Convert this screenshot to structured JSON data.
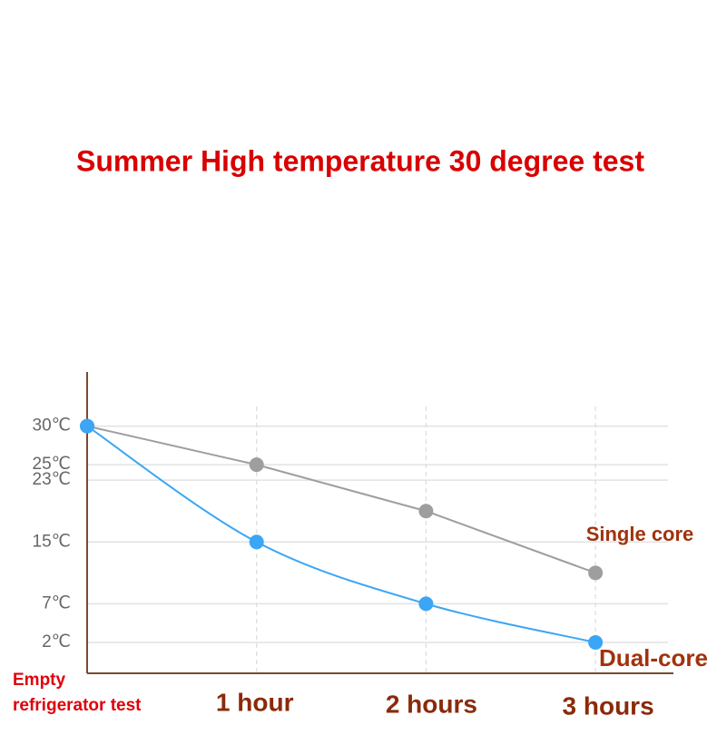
{
  "chart_data": {
    "type": "line",
    "title": "Summer High temperature 30 degree test",
    "categories": [
      "Empty refrigerator test",
      "1 hour",
      "2 hours",
      "3 hours"
    ],
    "series": [
      {
        "name": "Single core",
        "color": "#9e9e9e",
        "values": [
          30,
          25,
          19,
          11
        ]
      },
      {
        "name": "Dual-core",
        "color": "#3aa6f5",
        "values": [
          30,
          15,
          7,
          2
        ]
      }
    ],
    "ylim": [
      -2,
      37
    ],
    "yticks": [
      {
        "value": 30,
        "label": "30℃"
      },
      {
        "value": 25,
        "label": "25℃"
      },
      {
        "value": 23,
        "label": "23℃"
      },
      {
        "value": 15,
        "label": "15℃"
      },
      {
        "value": 7,
        "label": "7℃"
      },
      {
        "value": 2,
        "label": "2℃"
      }
    ],
    "grid": true
  }
}
